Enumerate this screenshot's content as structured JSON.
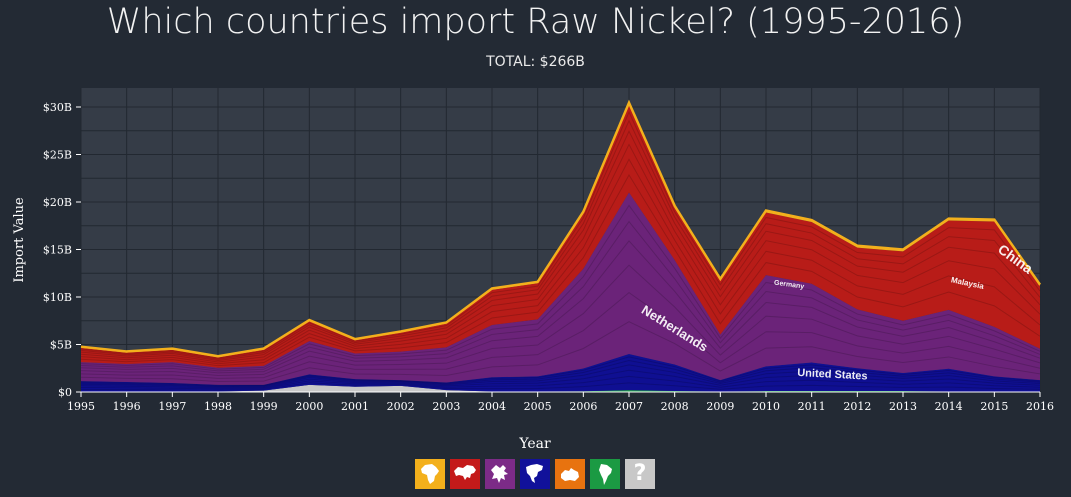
{
  "title": "Which countries import Raw Nickel? (1995-2016)",
  "subtitle": "TOTAL: $266B",
  "colors": {
    "background": "#232a34",
    "plot_background": "#353c47",
    "grid": "#222831",
    "axis_text": "#ffffff"
  },
  "chart_data": {
    "type": "area",
    "stacked": true,
    "title": "Which countries import Raw Nickel? (1995-2016)",
    "subtitle": "TOTAL: $266B",
    "xlabel": "Year",
    "ylabel": "Import Value",
    "x": [
      1995,
      1996,
      1997,
      1998,
      1999,
      2000,
      2001,
      2002,
      2003,
      2004,
      2005,
      2006,
      2007,
      2008,
      2009,
      2010,
      2011,
      2012,
      2013,
      2014,
      2015,
      2016
    ],
    "ylim": [
      0,
      32
    ],
    "y_unit": "USD billions",
    "y_ticks": [
      "$0",
      "$5B",
      "$10B",
      "$15B",
      "$20B",
      "$25B",
      "$30B"
    ],
    "grid": true,
    "series": [
      {
        "name": "South America",
        "color": "#1ea34a",
        "values": [
          0.05,
          0.05,
          0.05,
          0.05,
          0.05,
          0.05,
          0.05,
          0.05,
          0.05,
          0.05,
          0.05,
          0.08,
          0.2,
          0.1,
          0.05,
          0.1,
          0.1,
          0.1,
          0.1,
          0.05,
          0.05,
          0.05
        ]
      },
      {
        "name": "Unknown",
        "color": "#c8c8c8",
        "values": [
          0,
          0,
          0,
          0,
          0.1,
          0.7,
          0.5,
          0.6,
          0.15,
          0,
          0,
          0,
          0,
          0,
          0,
          0,
          0,
          0,
          0,
          0,
          0,
          0
        ]
      },
      {
        "name": "North America",
        "color": "#0f0f92",
        "values": [
          1.1,
          1.0,
          0.9,
          0.7,
          0.6,
          1.1,
          0.8,
          0.6,
          0.8,
          1.5,
          1.6,
          2.4,
          3.8,
          2.8,
          1.2,
          2.6,
          3.0,
          2.4,
          1.9,
          2.4,
          1.6,
          1.2
        ]
      },
      {
        "name": "Europe",
        "color": "#6b2379",
        "values": [
          2.0,
          1.9,
          2.2,
          1.8,
          2.0,
          3.5,
          2.7,
          3.0,
          3.7,
          5.5,
          6.0,
          10.5,
          17.0,
          11.0,
          4.8,
          9.6,
          8.3,
          6.2,
          5.5,
          6.2,
          5.2,
          3.3
        ]
      },
      {
        "name": "Asia",
        "color": "#b81c18",
        "values": [
          1.5,
          1.2,
          1.3,
          1.1,
          1.7,
          2.1,
          1.4,
          2.0,
          2.5,
          3.7,
          3.8,
          5.8,
          9.2,
          5.5,
          5.7,
          6.6,
          6.5,
          6.5,
          7.3,
          9.4,
          11.1,
          6.6
        ]
      },
      {
        "name": "Africa",
        "color": "#f3b01c",
        "values": [
          0.12,
          0.12,
          0.12,
          0.12,
          0.12,
          0.12,
          0.12,
          0.12,
          0.12,
          0.15,
          0.15,
          0.2,
          0.25,
          0.2,
          0.15,
          0.2,
          0.2,
          0.2,
          0.2,
          0.2,
          0.2,
          0.15
        ]
      }
    ],
    "annotations": [
      {
        "text": "Netherlands",
        "series": "Europe",
        "x": 2007.95,
        "y": 6.3
      },
      {
        "text": "United States",
        "series": "North America",
        "x": 2011.45,
        "y": 1.5
      },
      {
        "text": "Germany",
        "series": "Europe",
        "x": 2010.5,
        "y": 11.1
      },
      {
        "text": "Malaysia",
        "series": "Asia",
        "x": 2014.4,
        "y": 11.2
      },
      {
        "text": "China",
        "series": "Asia",
        "x": 2015.4,
        "y": 13.6
      }
    ]
  },
  "legend": [
    {
      "name": "africa",
      "label": "Africa",
      "color": "#f3b01c",
      "icon": "africa-icon"
    },
    {
      "name": "asia",
      "label": "Asia",
      "color": "#c41a1a",
      "icon": "asia-icon"
    },
    {
      "name": "europe",
      "label": "Europe",
      "color": "#7c2b87",
      "icon": "europe-icon"
    },
    {
      "name": "north-america",
      "label": "North America",
      "color": "#11119a",
      "icon": "north-america-icon"
    },
    {
      "name": "oceania",
      "label": "Oceania",
      "color": "#e8730f",
      "icon": "oceania-icon"
    },
    {
      "name": "south-america",
      "label": "South America",
      "color": "#1b9a43",
      "icon": "south-america-icon"
    },
    {
      "name": "unknown",
      "label": "Unknown",
      "color": "#c8c8c8",
      "icon": "question-icon",
      "glyph": "?"
    }
  ]
}
